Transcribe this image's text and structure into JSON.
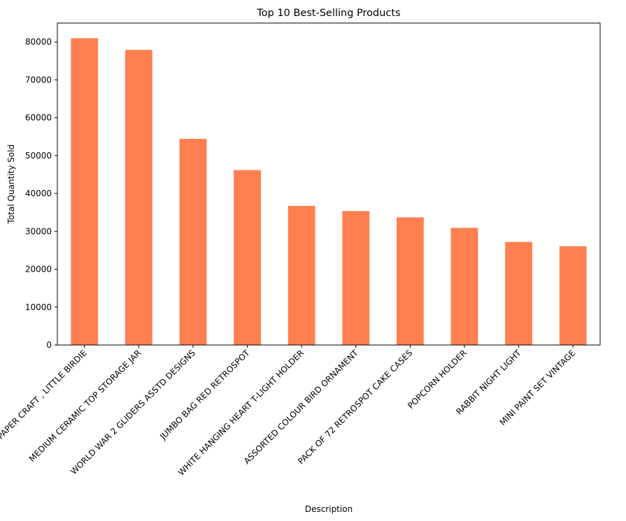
{
  "chart_data": {
    "type": "bar",
    "title": "Top 10 Best-Selling Products",
    "xlabel": "Description",
    "ylabel": "Total Quantity Sold",
    "categories": [
      "PAPER CRAFT , LITTLE BIRDIE",
      "MEDIUM CERAMIC TOP STORAGE JAR",
      "WORLD WAR 2 GLIDERS ASSTD DESIGNS",
      "JUMBO BAG RED RETROSPOT",
      "WHITE HANGING HEART T-LIGHT HOLDER",
      "ASSORTED COLOUR BIRD ORNAMENT",
      "PACK OF 72 RETROSPOT CAKE CASES",
      "POPCORN HOLDER",
      "RABBIT NIGHT LIGHT",
      "MINI PAINT SET VINTAGE"
    ],
    "values": [
      80995,
      77916,
      54415,
      46181,
      36725,
      35362,
      33693,
      30931,
      27202,
      26076
    ],
    "ylim": [
      0,
      85000
    ],
    "yticks": [
      0,
      10000,
      20000,
      30000,
      40000,
      50000,
      60000,
      70000,
      80000
    ],
    "bar_color": "#ff7f50",
    "grid": false,
    "legend": "none"
  }
}
